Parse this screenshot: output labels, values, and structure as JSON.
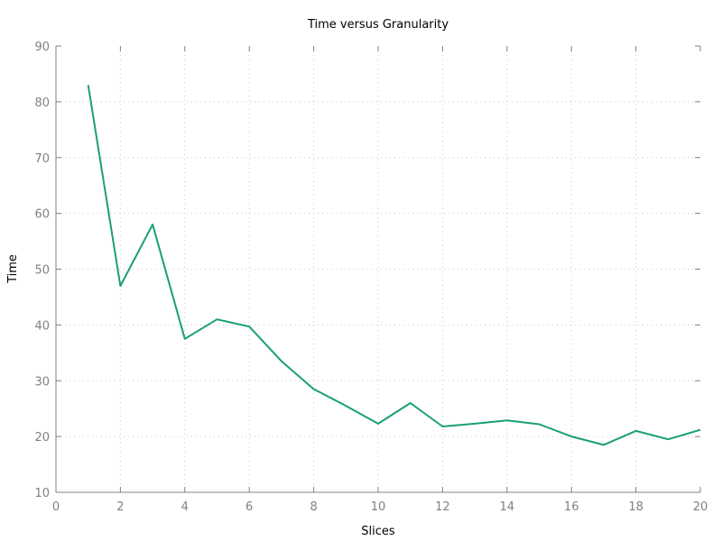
{
  "chart_data": {
    "type": "line",
    "title": "Time versus Granularity",
    "xlabel": "Slices",
    "ylabel": "Time",
    "xlim": [
      0,
      20
    ],
    "ylim": [
      10,
      90
    ],
    "xticks": [
      0,
      2,
      4,
      6,
      8,
      10,
      12,
      14,
      16,
      18,
      20
    ],
    "yticks": [
      10,
      20,
      30,
      40,
      50,
      60,
      70,
      80,
      90
    ],
    "grid": true,
    "series": [
      {
        "color": "#1a9e77",
        "x": [
          1,
          2,
          3,
          4,
          5,
          6,
          7,
          8,
          9,
          10,
          11,
          12,
          13,
          14,
          15,
          16,
          17,
          18,
          19,
          20
        ],
        "y": [
          83,
          47,
          58,
          37.5,
          41,
          39.7,
          33.5,
          28.5,
          25.5,
          22.3,
          26,
          21.8,
          22.3,
          22.9,
          22.2,
          20,
          18.5,
          21,
          19.5,
          21.2
        ]
      }
    ]
  }
}
